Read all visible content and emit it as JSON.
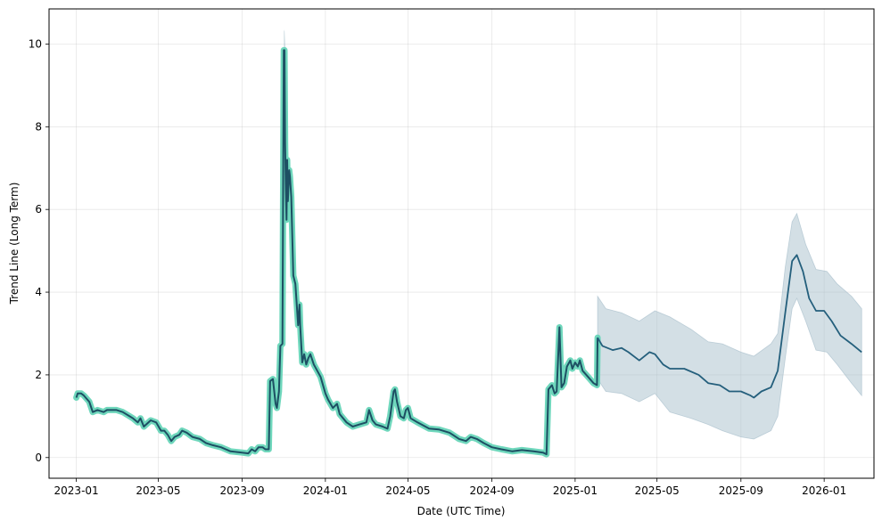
{
  "chart_data": {
    "type": "line",
    "title": "",
    "xlabel": "Date (UTC Time)",
    "ylabel": "Trend Line (Long Term)",
    "x_ticks": [
      "2023-01",
      "2023-05",
      "2023-09",
      "2024-01",
      "2024-05",
      "2024-09",
      "2025-01",
      "2025-05",
      "2025-09",
      "2026-01"
    ],
    "y_ticks": [
      "0",
      "2",
      "4",
      "6",
      "8",
      "10"
    ],
    "xlim": [
      "2022-11-22",
      "2026-03-15"
    ],
    "ylim": [
      -0.5,
      10.85
    ],
    "grid": true,
    "legend": "none",
    "colors": {
      "history_halo": "#5fd3b5",
      "history_line": "#1d4f63",
      "forecast_line": "#245f7c",
      "forecast_band": "#a8bfcc"
    },
    "series": [
      {
        "role": "historical-trend",
        "points": [
          [
            "2023-01-01",
            1.45
          ],
          [
            "2023-01-03",
            1.55
          ],
          [
            "2023-01-08",
            1.55
          ],
          [
            "2023-01-12",
            1.5
          ],
          [
            "2023-01-20",
            1.35
          ],
          [
            "2023-01-25",
            1.1
          ],
          [
            "2023-02-01",
            1.15
          ],
          [
            "2023-02-10",
            1.1
          ],
          [
            "2023-02-15",
            1.15
          ],
          [
            "2023-03-01",
            1.15
          ],
          [
            "2023-03-10",
            1.1
          ],
          [
            "2023-03-20",
            1.0
          ],
          [
            "2023-03-25",
            0.95
          ],
          [
            "2023-04-01",
            0.85
          ],
          [
            "2023-04-05",
            0.95
          ],
          [
            "2023-04-10",
            0.75
          ],
          [
            "2023-04-20",
            0.9
          ],
          [
            "2023-04-28",
            0.85
          ],
          [
            "2023-05-05",
            0.65
          ],
          [
            "2023-05-10",
            0.65
          ],
          [
            "2023-05-15",
            0.55
          ],
          [
            "2023-05-20",
            0.4
          ],
          [
            "2023-05-25",
            0.5
          ],
          [
            "2023-06-01",
            0.55
          ],
          [
            "2023-06-05",
            0.65
          ],
          [
            "2023-06-12",
            0.6
          ],
          [
            "2023-06-20",
            0.5
          ],
          [
            "2023-07-01",
            0.45
          ],
          [
            "2023-07-10",
            0.35
          ],
          [
            "2023-07-20",
            0.3
          ],
          [
            "2023-08-01",
            0.25
          ],
          [
            "2023-08-15",
            0.15
          ],
          [
            "2023-09-01",
            0.12
          ],
          [
            "2023-09-10",
            0.1
          ],
          [
            "2023-09-15",
            0.2
          ],
          [
            "2023-09-20",
            0.15
          ],
          [
            "2023-09-25",
            0.25
          ],
          [
            "2023-10-01",
            0.25
          ],
          [
            "2023-10-05",
            0.2
          ],
          [
            "2023-10-10",
            0.2
          ],
          [
            "2023-10-12",
            1.85
          ],
          [
            "2023-10-16",
            1.9
          ],
          [
            "2023-10-20",
            1.3
          ],
          [
            "2023-10-22",
            1.2
          ],
          [
            "2023-10-25",
            1.6
          ],
          [
            "2023-10-27",
            2.7
          ],
          [
            "2023-10-30",
            2.75
          ],
          [
            "2023-11-01",
            9.85
          ],
          [
            "2023-11-02",
            9.85
          ],
          [
            "2023-11-03",
            7.6
          ],
          [
            "2023-11-04",
            6.5
          ],
          [
            "2023-11-05",
            5.75
          ],
          [
            "2023-11-06",
            7.2
          ],
          [
            "2023-11-07",
            6.2
          ],
          [
            "2023-11-09",
            6.95
          ],
          [
            "2023-11-10",
            6.8
          ],
          [
            "2023-11-12",
            6.3
          ],
          [
            "2023-11-15",
            4.4
          ],
          [
            "2023-11-18",
            4.2
          ],
          [
            "2023-11-22",
            3.2
          ],
          [
            "2023-11-24",
            3.7
          ],
          [
            "2023-11-25",
            3.2
          ],
          [
            "2023-11-28",
            2.3
          ],
          [
            "2023-12-01",
            2.5
          ],
          [
            "2023-12-04",
            2.25
          ],
          [
            "2023-12-07",
            2.4
          ],
          [
            "2023-12-10",
            2.5
          ],
          [
            "2023-12-15",
            2.25
          ],
          [
            "2023-12-25",
            1.95
          ],
          [
            "2024-01-01",
            1.55
          ],
          [
            "2024-01-05",
            1.4
          ],
          [
            "2024-01-12",
            1.2
          ],
          [
            "2024-01-18",
            1.3
          ],
          [
            "2024-01-22",
            1.05
          ],
          [
            "2024-02-01",
            0.85
          ],
          [
            "2024-02-10",
            0.75
          ],
          [
            "2024-02-20",
            0.8
          ],
          [
            "2024-03-01",
            0.85
          ],
          [
            "2024-03-05",
            1.15
          ],
          [
            "2024-03-10",
            0.9
          ],
          [
            "2024-03-15",
            0.8
          ],
          [
            "2024-03-25",
            0.75
          ],
          [
            "2024-04-01",
            0.7
          ],
          [
            "2024-04-05",
            1.0
          ],
          [
            "2024-04-10",
            1.6
          ],
          [
            "2024-04-12",
            1.65
          ],
          [
            "2024-04-15",
            1.35
          ],
          [
            "2024-04-20",
            1.0
          ],
          [
            "2024-04-25",
            0.95
          ],
          [
            "2024-04-28",
            1.15
          ],
          [
            "2024-05-01",
            1.2
          ],
          [
            "2024-05-05",
            0.95
          ],
          [
            "2024-05-15",
            0.85
          ],
          [
            "2024-06-01",
            0.7
          ],
          [
            "2024-06-15",
            0.68
          ],
          [
            "2024-07-01",
            0.6
          ],
          [
            "2024-07-15",
            0.45
          ],
          [
            "2024-07-25",
            0.4
          ],
          [
            "2024-08-01",
            0.5
          ],
          [
            "2024-08-10",
            0.45
          ],
          [
            "2024-08-20",
            0.35
          ],
          [
            "2024-09-01",
            0.25
          ],
          [
            "2024-09-15",
            0.2
          ],
          [
            "2024-10-01",
            0.15
          ],
          [
            "2024-10-15",
            0.18
          ],
          [
            "2024-11-01",
            0.15
          ],
          [
            "2024-11-15",
            0.12
          ],
          [
            "2024-11-20",
            0.08
          ],
          [
            "2024-11-23",
            1.65
          ],
          [
            "2024-11-28",
            1.75
          ],
          [
            "2024-12-02",
            1.55
          ],
          [
            "2024-12-05",
            1.6
          ],
          [
            "2024-12-09",
            3.15
          ],
          [
            "2024-12-12",
            1.7
          ],
          [
            "2024-12-16",
            1.8
          ],
          [
            "2024-12-20",
            2.2
          ],
          [
            "2024-12-25",
            2.35
          ],
          [
            "2024-12-28",
            2.15
          ],
          [
            "2025-01-01",
            2.3
          ],
          [
            "2025-01-05",
            2.2
          ],
          [
            "2025-01-08",
            2.35
          ],
          [
            "2025-01-12",
            2.1
          ],
          [
            "2025-01-20",
            1.95
          ],
          [
            "2025-01-28",
            1.8
          ],
          [
            "2025-02-02",
            1.75
          ],
          [
            "2025-02-03",
            2.9
          ]
        ]
      },
      {
        "role": "forecast",
        "points": [
          [
            "2025-02-03",
            2.9
          ],
          [
            "2025-02-10",
            2.7
          ],
          [
            "2025-02-25",
            2.6
          ],
          [
            "2025-03-10",
            2.65
          ],
          [
            "2025-03-20",
            2.55
          ],
          [
            "2025-04-05",
            2.35
          ],
          [
            "2025-04-20",
            2.55
          ],
          [
            "2025-04-28",
            2.5
          ],
          [
            "2025-05-10",
            2.25
          ],
          [
            "2025-05-20",
            2.15
          ],
          [
            "2025-06-10",
            2.15
          ],
          [
            "2025-07-01",
            2.0
          ],
          [
            "2025-07-15",
            1.8
          ],
          [
            "2025-08-01",
            1.75
          ],
          [
            "2025-08-15",
            1.6
          ],
          [
            "2025-09-01",
            1.6
          ],
          [
            "2025-09-15",
            1.5
          ],
          [
            "2025-09-20",
            1.45
          ],
          [
            "2025-10-01",
            1.6
          ],
          [
            "2025-10-15",
            1.7
          ],
          [
            "2025-10-25",
            2.1
          ],
          [
            "2025-11-05",
            3.5
          ],
          [
            "2025-11-15",
            4.75
          ],
          [
            "2025-11-22",
            4.9
          ],
          [
            "2025-12-01",
            4.5
          ],
          [
            "2025-12-10",
            3.85
          ],
          [
            "2025-12-20",
            3.55
          ],
          [
            "2026-01-01",
            3.55
          ],
          [
            "2026-01-12",
            3.3
          ],
          [
            "2026-01-25",
            2.95
          ],
          [
            "2026-02-10",
            2.75
          ],
          [
            "2026-02-25",
            2.55
          ]
        ]
      },
      {
        "role": "forecast-upper-bound",
        "points": [
          [
            "2023-11-01",
            10.3
          ],
          [
            "2023-11-02",
            10.35
          ],
          [
            "2023-11-04",
            9.8
          ],
          [
            "2025-02-03",
            3.9
          ],
          [
            "2025-02-15",
            3.6
          ],
          [
            "2025-03-10",
            3.5
          ],
          [
            "2025-04-05",
            3.3
          ],
          [
            "2025-04-28",
            3.55
          ],
          [
            "2025-05-20",
            3.4
          ],
          [
            "2025-06-20",
            3.1
          ],
          [
            "2025-07-15",
            2.8
          ],
          [
            "2025-08-05",
            2.75
          ],
          [
            "2025-09-01",
            2.55
          ],
          [
            "2025-09-20",
            2.45
          ],
          [
            "2025-10-15",
            2.75
          ],
          [
            "2025-10-25",
            3.0
          ],
          [
            "2025-11-05",
            4.6
          ],
          [
            "2025-11-15",
            5.7
          ],
          [
            "2025-11-22",
            5.9
          ],
          [
            "2025-12-05",
            5.15
          ],
          [
            "2025-12-20",
            4.55
          ],
          [
            "2026-01-05",
            4.5
          ],
          [
            "2026-01-20",
            4.2
          ],
          [
            "2026-02-10",
            3.9
          ],
          [
            "2026-02-25",
            3.6
          ]
        ]
      },
      {
        "role": "forecast-lower-bound",
        "points": [
          [
            "2025-02-03",
            1.9
          ],
          [
            "2025-02-15",
            1.6
          ],
          [
            "2025-03-10",
            1.55
          ],
          [
            "2025-04-05",
            1.35
          ],
          [
            "2025-04-28",
            1.55
          ],
          [
            "2025-05-20",
            1.1
          ],
          [
            "2025-06-20",
            0.95
          ],
          [
            "2025-07-15",
            0.8
          ],
          [
            "2025-08-05",
            0.65
          ],
          [
            "2025-09-01",
            0.5
          ],
          [
            "2025-09-20",
            0.45
          ],
          [
            "2025-10-15",
            0.65
          ],
          [
            "2025-10-25",
            1.0
          ],
          [
            "2025-11-05",
            2.4
          ],
          [
            "2025-11-15",
            3.6
          ],
          [
            "2025-11-22",
            3.85
          ],
          [
            "2025-12-05",
            3.3
          ],
          [
            "2025-12-20",
            2.6
          ],
          [
            "2026-01-05",
            2.55
          ],
          [
            "2026-01-20",
            2.25
          ],
          [
            "2026-02-10",
            1.8
          ],
          [
            "2026-02-25",
            1.5
          ]
        ]
      }
    ]
  }
}
